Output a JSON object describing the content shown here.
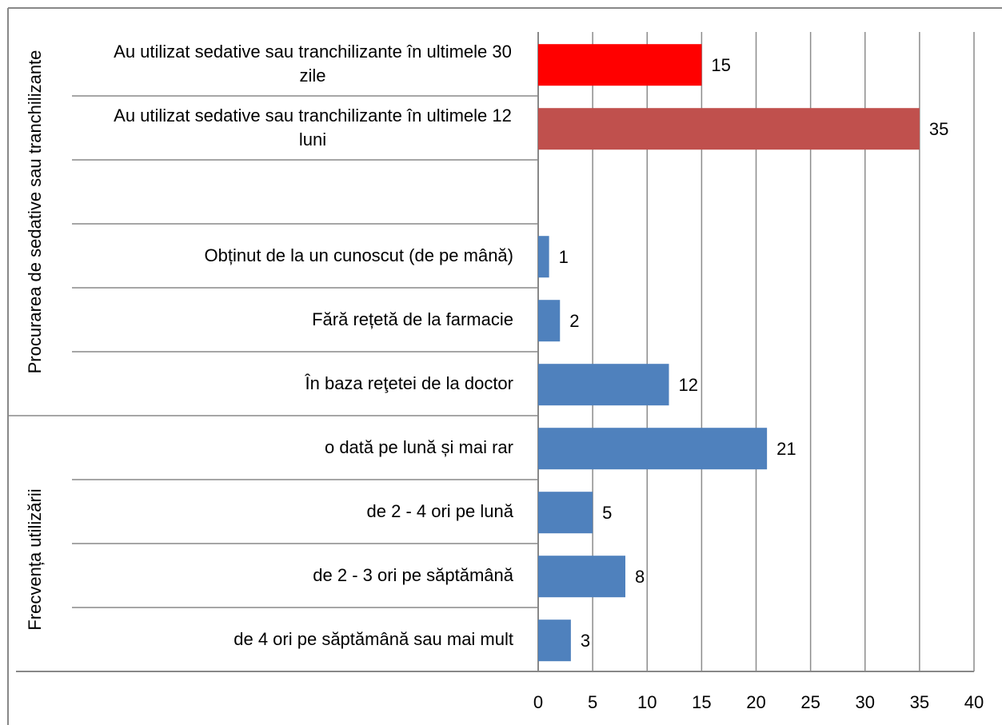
{
  "chart_data": {
    "type": "bar",
    "orientation": "horizontal",
    "categories": [
      "Au utilizat sedative sau tranchilizante în ultimele 30 zile",
      "Au utilizat sedative sau tranchilizante în ultimele 12 luni",
      null,
      "Obținut de la un cunoscut (de pe mână)",
      "Fără rețetă de la farmacie",
      "În baza reţetei de la doctor",
      "o dată pe lună și mai rar",
      "de  2 -  4 ori pe lună",
      "de 2 - 3 ori pe săptămână",
      "de  4 ori  pe săptămână sau mai mult"
    ],
    "values": [
      15,
      35,
      null,
      1,
      2,
      12,
      21,
      5,
      8,
      3
    ],
    "colors": [
      "#ff0000",
      "#c0504d",
      null,
      "#4f81bd",
      "#4f81bd",
      "#4f81bd",
      "#4f81bd",
      "#4f81bd",
      "#4f81bd",
      "#4f81bd"
    ],
    "groups": [
      "Procurarea  de  sedative sau tranchilizante",
      "Frecvența utilizării"
    ],
    "xlim": [
      0,
      40
    ],
    "xticks": [
      0,
      5,
      10,
      15,
      20,
      25,
      30,
      35,
      40
    ],
    "grid": true
  }
}
